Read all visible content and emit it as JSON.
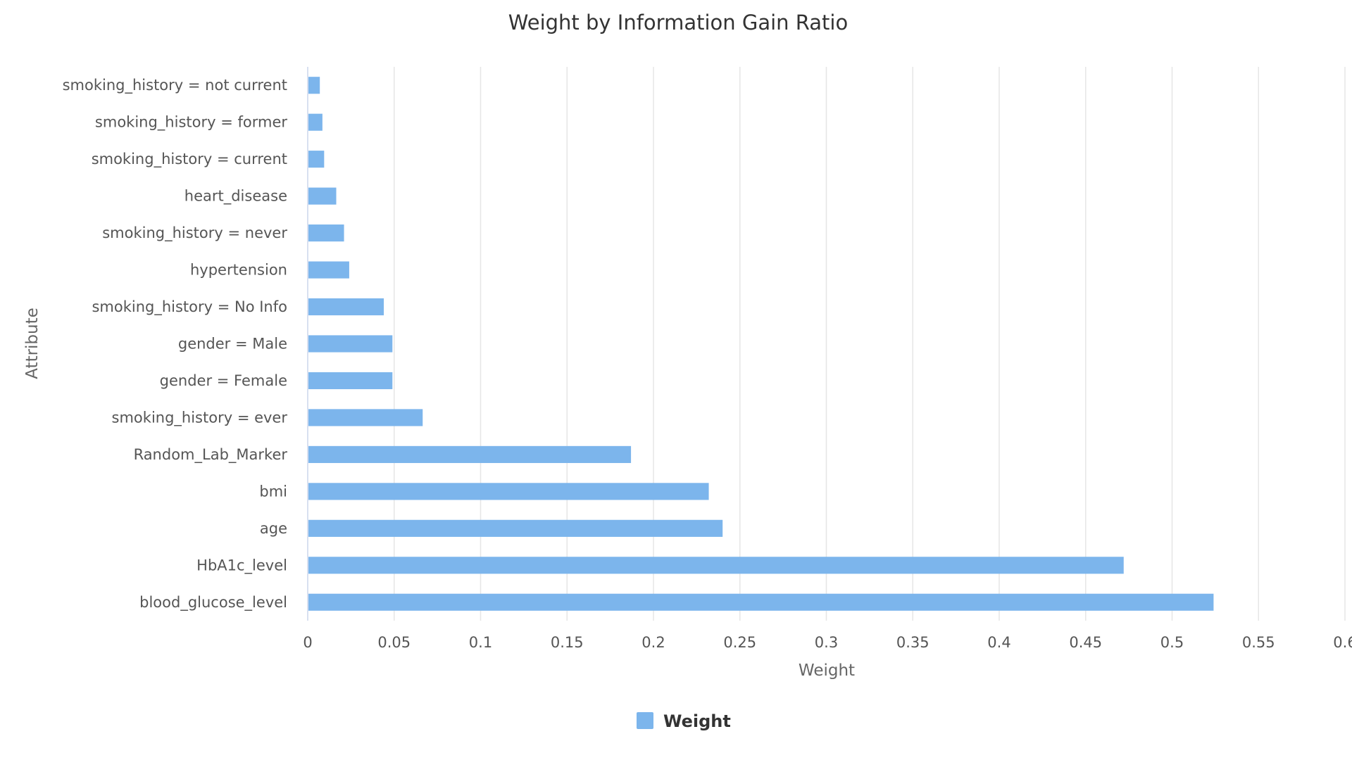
{
  "chart_data": {
    "type": "bar",
    "orientation": "horizontal",
    "title": "Weight by Information Gain Ratio",
    "xlabel": "Weight",
    "ylabel": "Attribute",
    "xlim": [
      0,
      0.6
    ],
    "x_ticks": [
      "0",
      "0.05",
      "0.1",
      "0.15",
      "0.2",
      "0.25",
      "0.3",
      "0.35",
      "0.4",
      "0.45",
      "0.5",
      "0.55",
      "0.6"
    ],
    "grid": true,
    "legend_placement": "bottom-center",
    "bar_color": "#7cb5ec",
    "categories": [
      "smoking_history = not current",
      "smoking_history = former",
      "smoking_history = current",
      "heart_disease",
      "smoking_history = never",
      "hypertension",
      "smoking_history = No Info",
      "gender = Male",
      "gender = Female",
      "smoking_history = ever",
      "Random_Lab_Marker",
      "bmi",
      "age",
      "HbA1c_level",
      "blood_glucose_level"
    ],
    "series": [
      {
        "name": "Weight",
        "values": [
          0.007,
          0.0085,
          0.0095,
          0.0165,
          0.021,
          0.024,
          0.044,
          0.049,
          0.049,
          0.0665,
          0.187,
          0.232,
          0.24,
          0.472,
          0.524
        ]
      }
    ]
  }
}
